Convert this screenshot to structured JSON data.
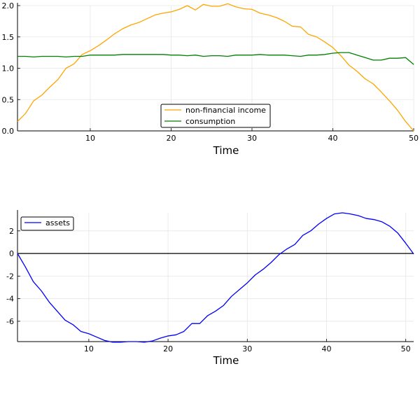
{
  "chart_data": [
    {
      "type": "line",
      "xlabel": "Time",
      "ylabel": "",
      "xlim": [
        1,
        50
      ],
      "ylim": [
        0,
        2
      ],
      "xticks": [
        10,
        20,
        30,
        40,
        50
      ],
      "yticks": [
        0.0,
        0.5,
        1.0,
        1.5,
        2.0
      ],
      "ytick_labels": [
        "0.0",
        "0.5",
        "1.0",
        "1.5",
        "2.0"
      ],
      "grid": true,
      "legend": "bottom-center",
      "series": [
        {
          "name": "non-financial income",
          "color": "#FFA500",
          "x": [
            1,
            2,
            3,
            4,
            5,
            6,
            7,
            8,
            9,
            10,
            11,
            12,
            13,
            14,
            15,
            16,
            17,
            18,
            19,
            20,
            21,
            22,
            23,
            24,
            25,
            26,
            27,
            28,
            29,
            30,
            31,
            32,
            33,
            34,
            35,
            36,
            37,
            38,
            39,
            40,
            41,
            42,
            43,
            44,
            45,
            46,
            47,
            48,
            49,
            50
          ],
          "values": [
            0.15,
            0.28,
            0.48,
            0.57,
            0.7,
            0.82,
            1.0,
            1.07,
            1.22,
            1.28,
            1.36,
            1.45,
            1.55,
            1.63,
            1.69,
            1.73,
            1.79,
            1.85,
            1.88,
            1.9,
            1.94,
            2.0,
            1.93,
            2.02,
            1.99,
            1.99,
            2.03,
            1.98,
            1.95,
            1.94,
            1.88,
            1.85,
            1.81,
            1.75,
            1.67,
            1.66,
            1.54,
            1.5,
            1.42,
            1.33,
            1.2,
            1.05,
            0.95,
            0.83,
            0.75,
            0.62,
            0.48,
            0.33,
            0.15,
            0.0
          ]
        },
        {
          "name": "consumption",
          "color": "#008000",
          "x": [
            1,
            2,
            3,
            4,
            5,
            6,
            7,
            8,
            9,
            10,
            11,
            12,
            13,
            14,
            15,
            16,
            17,
            18,
            19,
            20,
            21,
            22,
            23,
            24,
            25,
            26,
            27,
            28,
            29,
            30,
            31,
            32,
            33,
            34,
            35,
            36,
            37,
            38,
            39,
            40,
            41,
            42,
            43,
            44,
            45,
            46,
            47,
            48,
            49,
            50
          ],
          "values": [
            1.19,
            1.19,
            1.18,
            1.19,
            1.19,
            1.19,
            1.18,
            1.19,
            1.19,
            1.21,
            1.21,
            1.21,
            1.21,
            1.22,
            1.22,
            1.22,
            1.22,
            1.22,
            1.22,
            1.21,
            1.21,
            1.2,
            1.21,
            1.19,
            1.2,
            1.2,
            1.19,
            1.21,
            1.21,
            1.21,
            1.22,
            1.21,
            1.21,
            1.21,
            1.2,
            1.19,
            1.21,
            1.21,
            1.22,
            1.24,
            1.25,
            1.25,
            1.21,
            1.17,
            1.13,
            1.13,
            1.16,
            1.16,
            1.17,
            1.06
          ]
        }
      ]
    },
    {
      "type": "line",
      "xlabel": "Time",
      "ylabel": "",
      "xlim": [
        1,
        51
      ],
      "ylim": [
        -7.8,
        3.6
      ],
      "xticks": [
        10,
        20,
        30,
        40,
        50
      ],
      "yticks": [
        -6,
        -4,
        -2,
        0,
        2
      ],
      "ytick_labels": [
        "-6",
        "-4",
        "-2",
        "0",
        "2"
      ],
      "grid": true,
      "legend": "top-left",
      "zero_line": true,
      "series": [
        {
          "name": "assets",
          "color": "#0000FF",
          "x": [
            1,
            2,
            3,
            4,
            5,
            6,
            7,
            8,
            9,
            10,
            11,
            12,
            13,
            14,
            15,
            16,
            17,
            18,
            19,
            20,
            21,
            22,
            23,
            24,
            25,
            26,
            27,
            28,
            29,
            30,
            31,
            32,
            33,
            34,
            35,
            36,
            37,
            38,
            39,
            40,
            41,
            42,
            43,
            44,
            45,
            46,
            47,
            48,
            49,
            50,
            51
          ],
          "values": [
            0.0,
            -1.2,
            -2.5,
            -3.3,
            -4.3,
            -5.1,
            -5.9,
            -6.3,
            -6.9,
            -7.1,
            -7.4,
            -7.7,
            -7.85,
            -7.85,
            -7.8,
            -7.8,
            -7.85,
            -7.75,
            -7.5,
            -7.3,
            -7.2,
            -6.9,
            -6.2,
            -6.2,
            -5.5,
            -5.1,
            -4.6,
            -3.8,
            -3.2,
            -2.6,
            -1.9,
            -1.4,
            -0.8,
            -0.1,
            0.4,
            0.8,
            1.6,
            2.0,
            2.6,
            3.1,
            3.5,
            3.6,
            3.5,
            3.35,
            3.1,
            3.0,
            2.8,
            2.4,
            1.8,
            0.9,
            -0.05
          ]
        }
      ]
    }
  ]
}
